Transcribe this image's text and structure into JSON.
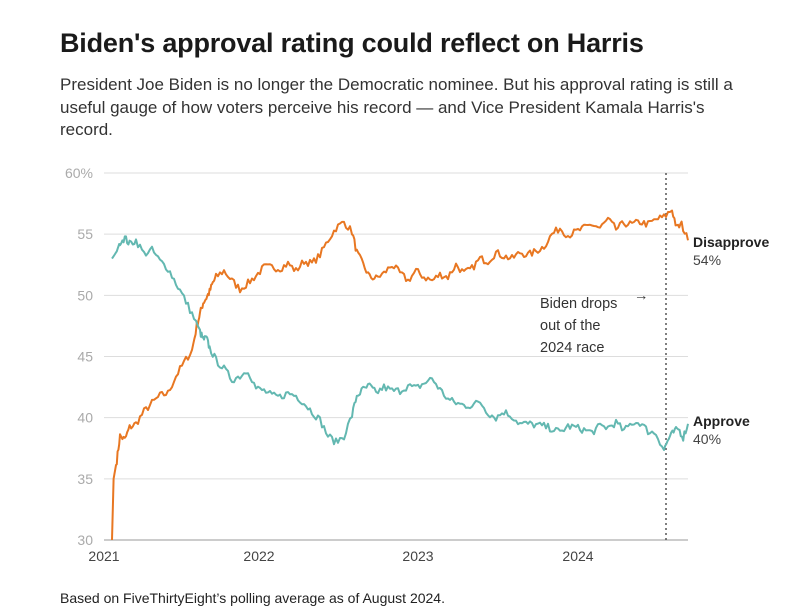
{
  "header": {
    "title": "Biden's approval rating could reflect on Harris",
    "subtitle": "President Joe Biden is no longer the Democratic nominee. But his approval rating is still a useful gauge of how voters perceive his record — and Vice President Kamala Harris's record."
  },
  "footer": {
    "source": "Based on FiveThirtyEight’s polling average as of August 2024."
  },
  "chart_data": {
    "type": "line",
    "title": "Biden's approval rating could reflect on Harris",
    "xlabel": "",
    "ylabel": "",
    "xlim": [
      2021.05,
      2024.65
    ],
    "ylim": [
      30,
      60
    ],
    "y_ticks": [
      30,
      35,
      40,
      45,
      50,
      55,
      60
    ],
    "y_tick_labels": [
      "30",
      "35",
      "40",
      "45",
      "50",
      "55",
      "60%"
    ],
    "x_ticks": [
      2021,
      2022,
      2023,
      2024
    ],
    "x_tick_labels": [
      "2021",
      "2022",
      "2023",
      "2024"
    ],
    "grid": true,
    "legend": "direct labels at right end of lines",
    "series": [
      {
        "name": "Disapprove",
        "end_label": "54%",
        "color": "#e87722",
        "x": [
          2021.05,
          2021.06,
          2021.08,
          2021.1,
          2021.13,
          2021.16,
          2021.2,
          2021.25,
          2021.3,
          2021.35,
          2021.4,
          2021.45,
          2021.5,
          2021.55,
          2021.58,
          2021.6,
          2021.62,
          2021.64,
          2021.66,
          2021.68,
          2021.7,
          2021.75,
          2021.8,
          2021.85,
          2021.9,
          2021.95,
          2022.0,
          2022.05,
          2022.1,
          2022.15,
          2022.2,
          2022.25,
          2022.3,
          2022.35,
          2022.4,
          2022.45,
          2022.5,
          2022.55,
          2022.58,
          2022.62,
          2022.66,
          2022.7,
          2022.75,
          2022.8,
          2022.85,
          2022.9,
          2022.95,
          2023.0,
          2023.05,
          2023.1,
          2023.15,
          2023.2,
          2023.25,
          2023.3,
          2023.35,
          2023.4,
          2023.45,
          2023.5,
          2023.55,
          2023.6,
          2023.65,
          2023.7,
          2023.75,
          2023.8,
          2023.85,
          2023.9,
          2023.95,
          2024.0,
          2024.05,
          2024.1,
          2024.15,
          2024.2,
          2024.25,
          2024.3,
          2024.35,
          2024.4,
          2024.45,
          2024.5,
          2024.55,
          2024.58,
          2024.61,
          2024.65
        ],
        "values": [
          30,
          35,
          36.5,
          38.5,
          38.2,
          39.2,
          39.5,
          40.5,
          41.2,
          41.8,
          42,
          43.4,
          44.5,
          45.5,
          47.5,
          48.5,
          49.4,
          49.8,
          50.3,
          51,
          51.5,
          52,
          51.2,
          50.5,
          51,
          51.6,
          52.3,
          52.3,
          52.2,
          52.6,
          52,
          52.8,
          52.6,
          53.3,
          54.5,
          55.5,
          56,
          55.2,
          53.5,
          52.5,
          51.5,
          51.4,
          51.8,
          52.5,
          51.8,
          51.2,
          52,
          51.5,
          51.2,
          51.7,
          51.5,
          52.5,
          51.8,
          52.2,
          53,
          52.8,
          53.5,
          53.2,
          53,
          53.5,
          53.3,
          53.6,
          54,
          55,
          55.5,
          54.9,
          55.2,
          55.5,
          55.8,
          55.5,
          56.2,
          55.4,
          55.9,
          55.8,
          56,
          55.8,
          56.2,
          56.4,
          57,
          55.5,
          55.8,
          54.5
        ]
      },
      {
        "name": "Approve",
        "end_label": "40%",
        "color": "#63b8b1",
        "x": [
          2021.05,
          2021.08,
          2021.1,
          2021.13,
          2021.16,
          2021.2,
          2021.25,
          2021.3,
          2021.35,
          2021.4,
          2021.45,
          2021.5,
          2021.55,
          2021.6,
          2021.62,
          2021.64,
          2021.66,
          2021.7,
          2021.75,
          2021.8,
          2021.85,
          2021.9,
          2021.95,
          2022.0,
          2022.05,
          2022.1,
          2022.15,
          2022.2,
          2022.25,
          2022.3,
          2022.35,
          2022.4,
          2022.45,
          2022.5,
          2022.55,
          2022.58,
          2022.62,
          2022.66,
          2022.7,
          2022.75,
          2022.8,
          2022.85,
          2022.9,
          2022.95,
          2023.0,
          2023.05,
          2023.1,
          2023.15,
          2023.2,
          2023.25,
          2023.3,
          2023.35,
          2023.4,
          2023.45,
          2023.5,
          2023.55,
          2023.6,
          2023.65,
          2023.7,
          2023.75,
          2023.8,
          2023.85,
          2023.9,
          2023.95,
          2024.0,
          2024.05,
          2024.1,
          2024.15,
          2024.2,
          2024.25,
          2024.3,
          2024.35,
          2024.4,
          2024.45,
          2024.5,
          2024.53,
          2024.56,
          2024.59,
          2024.62,
          2024.65
        ],
        "values": [
          53,
          53.6,
          54.4,
          54.7,
          54.2,
          54.5,
          53.4,
          53.7,
          52.8,
          52.2,
          51,
          49.8,
          48.5,
          47,
          46.4,
          46.5,
          45.7,
          44.7,
          44,
          43.1,
          43.4,
          43.9,
          42.4,
          42.2,
          41.8,
          41.7,
          42,
          41.8,
          41.2,
          40.5,
          39.8,
          38.5,
          38,
          38.5,
          40.2,
          41.8,
          42.3,
          42.6,
          42,
          42.5,
          42.2,
          42.2,
          42.6,
          42.4,
          42.8,
          43.2,
          42.3,
          41.5,
          41.2,
          41,
          41,
          41.3,
          40.4,
          40,
          40.5,
          40.1,
          39.5,
          39.5,
          39.4,
          39.3,
          39.1,
          38.8,
          39.3,
          39.2,
          39,
          38.8,
          39.3,
          39.2,
          39.6,
          38.9,
          39.6,
          39.6,
          38.9,
          38.7,
          37.4,
          38.3,
          38.8,
          39.1,
          38.4,
          39.5
        ]
      }
    ],
    "annotation": {
      "text_lines": [
        "Biden drops",
        "out of the",
        "2024 race"
      ],
      "arrow": "→",
      "x": 2024.55
    }
  }
}
